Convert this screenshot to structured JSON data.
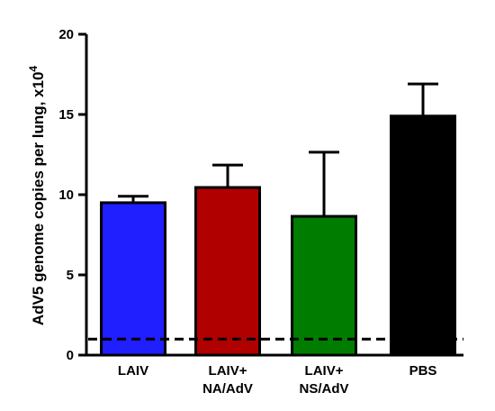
{
  "chart_data": {
    "type": "bar",
    "title": "",
    "xlabel": "",
    "ylabel": "AdV5 genome copies per lung, x10",
    "ylabel_superscript": "4",
    "ylim": [
      0,
      20
    ],
    "yticks": [
      "0",
      "5",
      "10",
      "15",
      "20"
    ],
    "categories": [
      {
        "line1": "LAIV",
        "line2": ""
      },
      {
        "line1": "LAIV+",
        "line2": "NA/AdV"
      },
      {
        "line1": "LAIV+",
        "line2": "NS/AdV"
      },
      {
        "line1": "PBS",
        "line2": ""
      }
    ],
    "values": [
      9.5,
      10.45,
      8.65,
      14.9
    ],
    "error_upper": [
      0.4,
      1.4,
      4.0,
      2.0
    ],
    "colors": [
      "#1f1fff",
      "#b00000",
      "#007d00",
      "#000000"
    ],
    "reference_line": {
      "y": 1.0,
      "style": "dashed",
      "color": "#000000"
    },
    "grid": false,
    "legend": "none"
  }
}
